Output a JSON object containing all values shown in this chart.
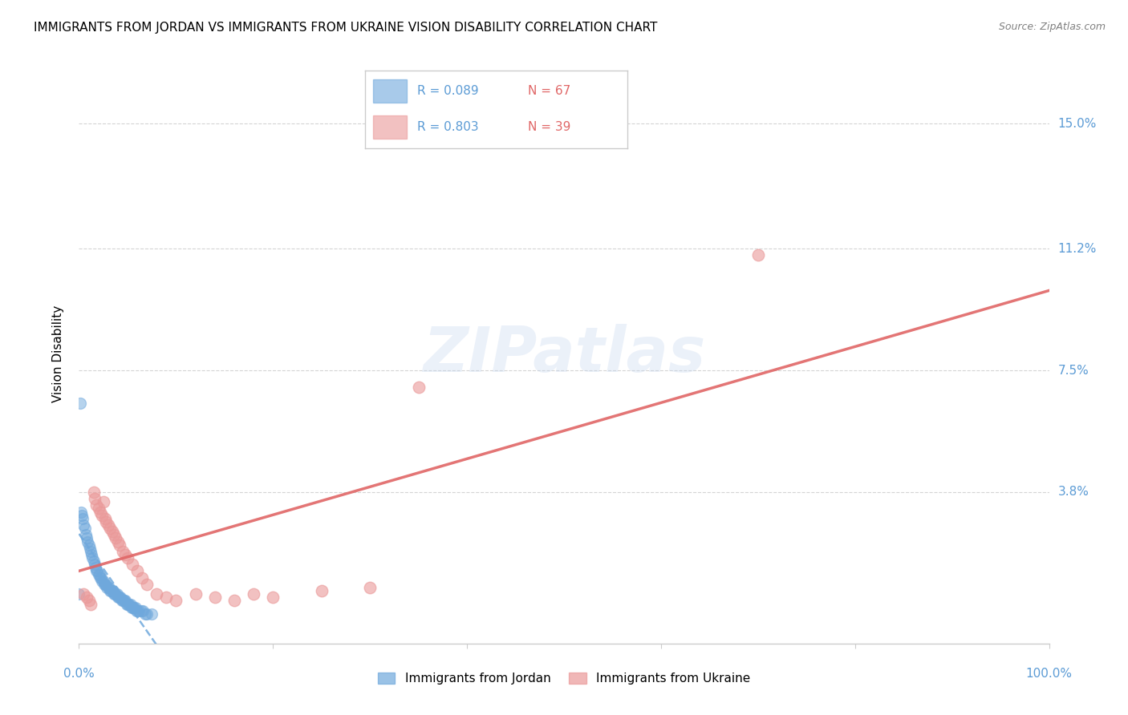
{
  "title": "IMMIGRANTS FROM JORDAN VS IMMIGRANTS FROM UKRAINE VISION DISABILITY CORRELATION CHART",
  "source": "Source: ZipAtlas.com",
  "ylabel": "Vision Disability",
  "ytick_values": [
    0.038,
    0.075,
    0.112,
    0.15
  ],
  "ytick_labels": [
    "3.8%",
    "7.5%",
    "11.2%",
    "15.0%"
  ],
  "xlim": [
    0.0,
    1.0
  ],
  "ylim": [
    -0.008,
    0.168
  ],
  "legend_jordan_R": "R = 0.089",
  "legend_jordan_N": "N = 67",
  "legend_ukraine_R": "R = 0.803",
  "legend_ukraine_N": "N = 39",
  "color_jordan": "#6fa8dc",
  "color_ukraine": "#ea9999",
  "trendline_jordan_color": "#6fa8dc",
  "trendline_ukraine_color": "#e06666",
  "watermark": "ZIPatlas",
  "tick_label_color": "#5b9bd5",
  "jordan_x": [
    0.002,
    0.003,
    0.004,
    0.005,
    0.006,
    0.007,
    0.008,
    0.009,
    0.01,
    0.011,
    0.012,
    0.013,
    0.014,
    0.015,
    0.016,
    0.017,
    0.018,
    0.019,
    0.02,
    0.021,
    0.022,
    0.023,
    0.024,
    0.025,
    0.026,
    0.027,
    0.028,
    0.029,
    0.03,
    0.031,
    0.032,
    0.033,
    0.034,
    0.035,
    0.036,
    0.037,
    0.038,
    0.039,
    0.04,
    0.041,
    0.042,
    0.043,
    0.044,
    0.045,
    0.046,
    0.047,
    0.048,
    0.049,
    0.05,
    0.051,
    0.052,
    0.053,
    0.054,
    0.055,
    0.056,
    0.057,
    0.058,
    0.059,
    0.06,
    0.062,
    0.064,
    0.066,
    0.068,
    0.07,
    0.075,
    0.001,
    0.0
  ],
  "jordan_y": [
    0.032,
    0.031,
    0.03,
    0.028,
    0.027,
    0.025,
    0.024,
    0.023,
    0.022,
    0.021,
    0.02,
    0.019,
    0.018,
    0.017,
    0.016,
    0.015,
    0.014,
    0.014,
    0.013,
    0.013,
    0.012,
    0.012,
    0.011,
    0.011,
    0.01,
    0.01,
    0.01,
    0.009,
    0.009,
    0.009,
    0.008,
    0.008,
    0.008,
    0.008,
    0.007,
    0.007,
    0.007,
    0.007,
    0.006,
    0.006,
    0.006,
    0.006,
    0.005,
    0.005,
    0.005,
    0.005,
    0.005,
    0.004,
    0.004,
    0.004,
    0.004,
    0.004,
    0.003,
    0.003,
    0.003,
    0.003,
    0.003,
    0.002,
    0.002,
    0.002,
    0.002,
    0.002,
    0.001,
    0.001,
    0.001,
    0.065,
    0.007
  ],
  "ukraine_x": [
    0.005,
    0.008,
    0.01,
    0.012,
    0.015,
    0.016,
    0.018,
    0.02,
    0.022,
    0.024,
    0.025,
    0.027,
    0.028,
    0.03,
    0.032,
    0.034,
    0.036,
    0.038,
    0.04,
    0.042,
    0.045,
    0.048,
    0.05,
    0.055,
    0.06,
    0.065,
    0.07,
    0.08,
    0.09,
    0.1,
    0.12,
    0.14,
    0.16,
    0.18,
    0.2,
    0.25,
    0.3,
    0.35,
    0.7
  ],
  "ukraine_y": [
    0.007,
    0.006,
    0.005,
    0.004,
    0.038,
    0.036,
    0.034,
    0.033,
    0.032,
    0.031,
    0.035,
    0.03,
    0.029,
    0.028,
    0.027,
    0.026,
    0.025,
    0.024,
    0.023,
    0.022,
    0.02,
    0.019,
    0.018,
    0.016,
    0.014,
    0.012,
    0.01,
    0.007,
    0.006,
    0.005,
    0.007,
    0.006,
    0.005,
    0.007,
    0.006,
    0.008,
    0.009,
    0.07,
    0.11
  ]
}
